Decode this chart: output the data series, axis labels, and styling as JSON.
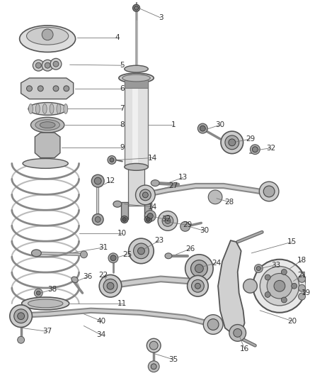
{
  "bg_color": "#ffffff",
  "figsize": [
    4.38,
    5.33
  ],
  "dpi": 100,
  "line_color": "#555555",
  "part_color_dark": "#444444",
  "part_color_mid": "#888888",
  "part_color_light": "#cccccc",
  "part_color_lighter": "#e0e0e0",
  "label_fontsize": 7.5,
  "label_color": "#333333"
}
